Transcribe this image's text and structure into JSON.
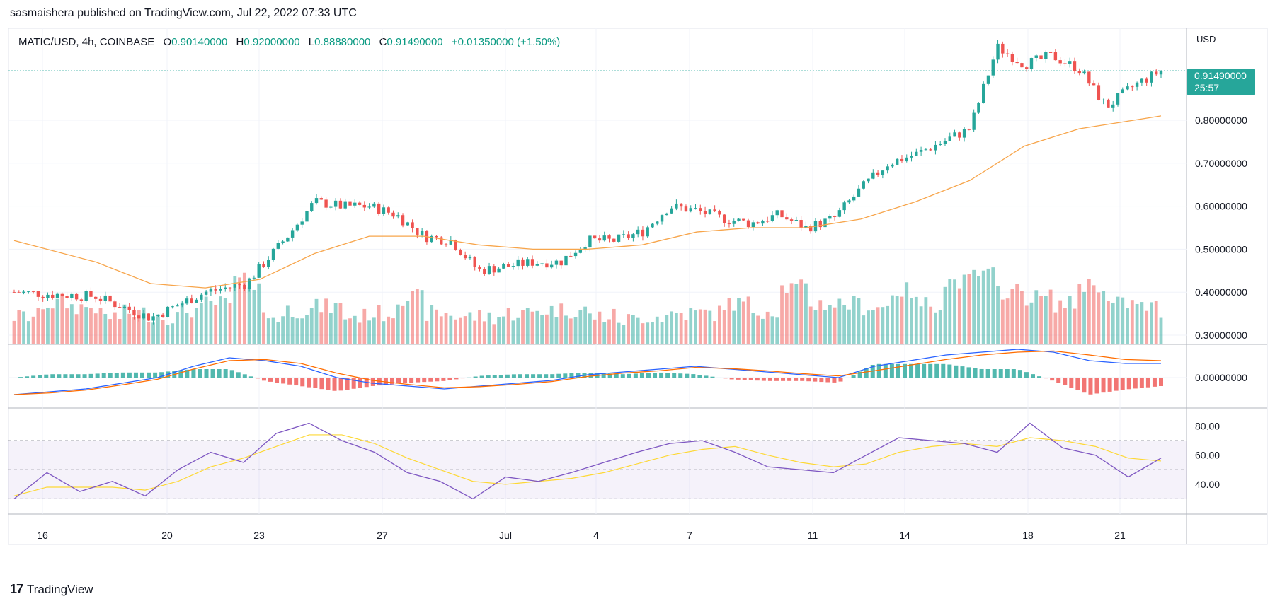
{
  "publisher_line": "sasmaishera published on TradingView.com, Jul 22, 2022 07:33 UTC",
  "legend": {
    "symbol": "MATIC/USD, 4h, COINBASE",
    "open_label": "O",
    "open": "0.90140000",
    "high_label": "H",
    "high": "0.92000000",
    "low_label": "L",
    "low": "0.88880000",
    "close_label": "C",
    "close": "0.91490000",
    "change": "+0.01350000 (+1.50%)"
  },
  "price_axis": {
    "currency": "USD",
    "ticks": [
      "0.80000000",
      "0.70000000",
      "0.60000000",
      "0.50000000",
      "0.40000000",
      "0.30000000"
    ],
    "current_price": "0.91490000",
    "countdown": "25:57"
  },
  "macd_axis": {
    "ticks": [
      "0.00000000"
    ]
  },
  "rsi_axis": {
    "ticks": [
      "80.00",
      "60.00",
      "40.00"
    ]
  },
  "x_axis": {
    "ticks": [
      "16",
      "20",
      "23",
      "27",
      "Jul",
      "4",
      "7",
      "11",
      "14",
      "18",
      "21"
    ]
  },
  "footer": {
    "brand": "TradingView",
    "brand_mark": "17"
  },
  "colors": {
    "up": "#26a69a",
    "down": "#ef5350",
    "ma": "#f7a54b",
    "macd": "#2962ff",
    "signal": "#ff6d00",
    "rsi": "#7e57c2",
    "rsi_ma": "#fdd835"
  },
  "chart_data": [
    {
      "type": "candlestick",
      "title": "MATIC/USD, 4h, COINBASE",
      "ylabel": "USD",
      "ylim": [
        0.28,
        1.0
      ],
      "x": [
        "Jun 16",
        "Jun 20",
        "Jun 23",
        "Jun 27",
        "Jul 1",
        "Jul 4",
        "Jul 7",
        "Jul 11",
        "Jul 14",
        "Jul 18",
        "Jul 21"
      ],
      "close_path": [
        [
          0,
          0.4
        ],
        [
          3,
          0.39
        ],
        [
          5,
          0.34
        ],
        [
          7,
          0.4
        ],
        [
          8.5,
          0.42
        ],
        [
          10,
          0.53
        ],
        [
          11,
          0.61
        ],
        [
          12,
          0.6
        ],
        [
          13,
          0.6
        ],
        [
          14,
          0.58
        ],
        [
          15,
          0.53
        ],
        [
          16,
          0.52
        ],
        [
          17,
          0.45
        ],
        [
          18,
          0.46
        ],
        [
          19,
          0.47
        ],
        [
          20,
          0.47
        ],
        [
          21,
          0.52
        ],
        [
          22,
          0.52
        ],
        [
          23,
          0.54
        ],
        [
          24,
          0.6
        ],
        [
          25,
          0.59
        ],
        [
          26,
          0.57
        ],
        [
          27,
          0.56
        ],
        [
          28,
          0.58
        ],
        [
          29,
          0.55
        ],
        [
          30,
          0.57
        ],
        [
          31,
          0.64
        ],
        [
          32,
          0.7
        ],
        [
          33,
          0.72
        ],
        [
          34,
          0.75
        ],
        [
          35,
          0.78
        ],
        [
          36,
          0.97
        ],
        [
          37,
          0.93
        ],
        [
          38,
          0.95
        ],
        [
          39,
          0.92
        ],
        [
          40,
          0.83
        ],
        [
          41,
          0.88
        ],
        [
          42,
          0.915
        ]
      ],
      "moving_average": [
        [
          0,
          0.52
        ],
        [
          3,
          0.47
        ],
        [
          5,
          0.42
        ],
        [
          7,
          0.41
        ],
        [
          9,
          0.43
        ],
        [
          11,
          0.49
        ],
        [
          13,
          0.53
        ],
        [
          15,
          0.53
        ],
        [
          17,
          0.51
        ],
        [
          19,
          0.5
        ],
        [
          21,
          0.5
        ],
        [
          23,
          0.51
        ],
        [
          25,
          0.54
        ],
        [
          27,
          0.55
        ],
        [
          29,
          0.55
        ],
        [
          31,
          0.57
        ],
        [
          33,
          0.61
        ],
        [
          35,
          0.66
        ],
        [
          37,
          0.74
        ],
        [
          39,
          0.78
        ],
        [
          41,
          0.8
        ],
        [
          42,
          0.81
        ]
      ]
    },
    {
      "type": "bar",
      "title": "Volume",
      "values": [
        0.3,
        0.5,
        0.45,
        0.3,
        0.35,
        0.3,
        0.4,
        0.5,
        0.85,
        0.3,
        0.4,
        0.45,
        0.3,
        0.35,
        0.6,
        0.35,
        0.3,
        0.3,
        0.35,
        0.4,
        0.4,
        0.3,
        0.25,
        0.3,
        0.35,
        0.35,
        0.5,
        0.4,
        0.75,
        0.5,
        0.5,
        0.45,
        0.7,
        0.5,
        0.85,
        0.95,
        0.7,
        0.6,
        0.5,
        0.8,
        0.5,
        0.45,
        0.35
      ]
    },
    {
      "type": "line",
      "title": "MACD",
      "series": [
        {
          "values": [
            -0.03,
            -0.025,
            -0.02,
            -0.01,
            0.0,
            0.02,
            0.035,
            0.03,
            0.02,
            0.0,
            -0.01,
            -0.015,
            -0.02,
            -0.015,
            -0.01,
            -0.005,
            0.005,
            0.01,
            0.015,
            0.02,
            0.015,
            0.01,
            0.005,
            0.0,
            0.02,
            0.03,
            0.04,
            0.045,
            0.05,
            0.045,
            0.03,
            0.025,
            0.025
          ]
        },
        {
          "values": [
            -0.03,
            -0.027,
            -0.022,
            -0.013,
            -0.003,
            0.015,
            0.03,
            0.032,
            0.025,
            0.008,
            -0.005,
            -0.012,
            -0.018,
            -0.016,
            -0.012,
            -0.007,
            0.002,
            0.008,
            0.012,
            0.018,
            0.016,
            0.012,
            0.007,
            0.003,
            0.012,
            0.022,
            0.032,
            0.04,
            0.045,
            0.047,
            0.04,
            0.032,
            0.03
          ]
        }
      ]
    },
    {
      "type": "line",
      "title": "RSI",
      "ylim": [
        20,
        90
      ],
      "series": [
        {
          "values": [
            30,
            48,
            35,
            42,
            32,
            50,
            62,
            55,
            75,
            82,
            70,
            62,
            48,
            42,
            30,
            45,
            42,
            48,
            55,
            62,
            68,
            70,
            62,
            52,
            50,
            48,
            60,
            72,
            70,
            68,
            62,
            82,
            65,
            60,
            45,
            58
          ]
        },
        {
          "values": [
            32,
            38,
            38,
            38,
            36,
            42,
            52,
            58,
            66,
            74,
            74,
            68,
            58,
            50,
            42,
            40,
            42,
            44,
            48,
            54,
            60,
            64,
            66,
            60,
            55,
            52,
            54,
            62,
            66,
            68,
            66,
            72,
            70,
            66,
            58,
            56
          ]
        }
      ]
    }
  ]
}
